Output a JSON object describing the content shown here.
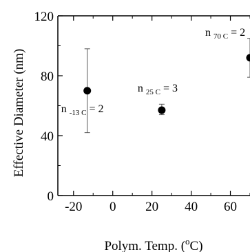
{
  "chart_data": {
    "type": "scatter",
    "xlabel": "Polym. Temp. (",
    "xlabel_sup": "o",
    "xlabel_unit": "C)",
    "ylabel": "Effective Diameter (nm)",
    "xlim": [
      -28,
      70
    ],
    "ylim": [
      0,
      120
    ],
    "x_ticks": [
      "-20",
      "0",
      "20",
      "40",
      "60"
    ],
    "y_ticks": [
      "0",
      "40",
      "80",
      "120"
    ],
    "x_tick_values": [
      -20,
      0,
      20,
      40,
      60
    ],
    "y_tick_values": [
      0,
      40,
      80,
      120
    ],
    "grid": false,
    "points": [
      {
        "x": -13,
        "y": 70,
        "err_low": 42,
        "err_high": 98
      },
      {
        "x": 25,
        "y": 57,
        "err_low": 54,
        "err_high": 61
      },
      {
        "x": 70,
        "y": 92,
        "err_low": 79,
        "err_high": 105
      }
    ],
    "annotations": [
      {
        "prefix": "n",
        "sub": "-13 C",
        "suffix": " = 2",
        "near_point": 0,
        "placement": "below"
      },
      {
        "prefix": "n",
        "sub": "25 C",
        "suffix": " = 3",
        "near_point": 1,
        "placement": "above"
      },
      {
        "prefix": "n",
        "sub": "70 C",
        "suffix": " = 2",
        "near_point": 2,
        "placement": "above-left"
      }
    ]
  }
}
